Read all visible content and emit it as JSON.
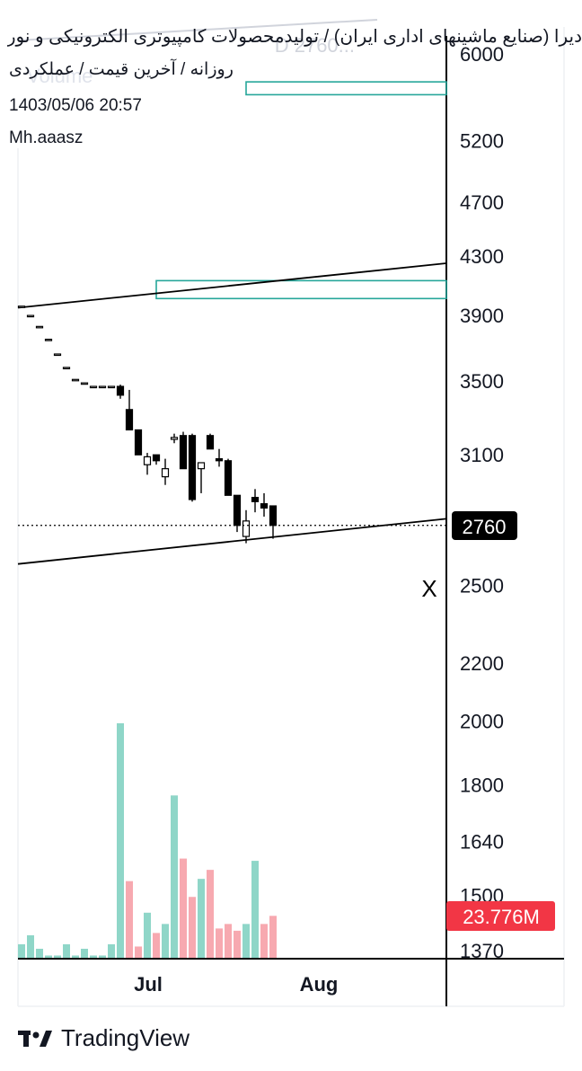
{
  "header": {
    "title": "دیرا (صنایع ماشینهای اداری ایران) / تولیدمحصولات کامپیوتری الکترونیکی و نوری",
    "subtitle": "روزانه / آخرین قیمت / عملکردی",
    "timestamp": "1403/05/06 20:57",
    "author": "Mh.aaasz",
    "watermark_symbol": "D  2760...",
    "watermark_volume": "Volume"
  },
  "chart_data": {
    "type": "candlestick",
    "y_scale": "log",
    "ylim": [
      1370,
      6000
    ],
    "y_ticks": [
      6000,
      5200,
      4700,
      4300,
      3900,
      3500,
      3100,
      2760,
      2500,
      2200,
      2000,
      1800,
      1640,
      1500,
      1370
    ],
    "x_ticks": [
      "Jul",
      "Aug"
    ],
    "last_price": 2760,
    "last_price_label": "2760",
    "volume_label": "23.776M",
    "marker_label": "X",
    "candles": [
      {
        "o": 3960,
        "h": 3960,
        "l": 3960,
        "c": 3960
      },
      {
        "o": 3900,
        "h": 3900,
        "l": 3900,
        "c": 3900
      },
      {
        "o": 3830,
        "h": 3830,
        "l": 3830,
        "c": 3830
      },
      {
        "o": 3750,
        "h": 3750,
        "l": 3750,
        "c": 3750
      },
      {
        "o": 3660,
        "h": 3660,
        "l": 3660,
        "c": 3660
      },
      {
        "o": 3580,
        "h": 3580,
        "l": 3580,
        "c": 3580
      },
      {
        "o": 3510,
        "h": 3510,
        "l": 3510,
        "c": 3510
      },
      {
        "o": 3490,
        "h": 3490,
        "l": 3490,
        "c": 3490
      },
      {
        "o": 3470,
        "h": 3470,
        "l": 3470,
        "c": 3470
      },
      {
        "o": 3470,
        "h": 3470,
        "l": 3470,
        "c": 3470
      },
      {
        "o": 3470,
        "h": 3470,
        "l": 3470,
        "c": 3470
      },
      {
        "o": 3470,
        "h": 3480,
        "l": 3400,
        "c": 3420
      },
      {
        "o": 3340,
        "h": 3450,
        "l": 3230,
        "c": 3230
      },
      {
        "o": 3230,
        "h": 3230,
        "l": 3100,
        "c": 3100
      },
      {
        "o": 3050,
        "h": 3110,
        "l": 3000,
        "c": 3090
      },
      {
        "o": 3100,
        "h": 3100,
        "l": 3050,
        "c": 3070
      },
      {
        "o": 2990,
        "h": 3080,
        "l": 2950,
        "c": 3030
      },
      {
        "o": 3180,
        "h": 3210,
        "l": 3160,
        "c": 3190
      },
      {
        "o": 3200,
        "h": 3220,
        "l": 3030,
        "c": 3030
      },
      {
        "o": 3200,
        "h": 3210,
        "l": 2870,
        "c": 2880
      },
      {
        "o": 3030,
        "h": 3050,
        "l": 2910,
        "c": 3060
      },
      {
        "o": 3200,
        "h": 3210,
        "l": 3130,
        "c": 3130
      },
      {
        "o": 3080,
        "h": 3130,
        "l": 3040,
        "c": 3070
      },
      {
        "o": 3070,
        "h": 3080,
        "l": 2900,
        "c": 2900
      },
      {
        "o": 2900,
        "h": 2900,
        "l": 2730,
        "c": 2760
      },
      {
        "o": 2710,
        "h": 2830,
        "l": 2680,
        "c": 2780
      },
      {
        "o": 2890,
        "h": 2930,
        "l": 2820,
        "c": 2870
      },
      {
        "o": 2860,
        "h": 2910,
        "l": 2800,
        "c": 2840
      },
      {
        "o": 2850,
        "h": 2850,
        "l": 2700,
        "c": 2760
      }
    ],
    "volume_min": 0,
    "volume_max": 52,
    "volume": [
      {
        "v": 3,
        "up": true
      },
      {
        "v": 5,
        "up": true
      },
      {
        "v": 2,
        "up": true
      },
      {
        "v": 0.5,
        "up": true
      },
      {
        "v": 0.5,
        "up": true
      },
      {
        "v": 3,
        "up": true
      },
      {
        "v": 0.5,
        "up": true
      },
      {
        "v": 2,
        "up": true
      },
      {
        "v": 0.5,
        "up": true
      },
      {
        "v": 0.5,
        "up": true
      },
      {
        "v": 3,
        "up": true
      },
      {
        "v": 52,
        "up": true
      },
      {
        "v": 17,
        "up": false
      },
      {
        "v": 2.5,
        "up": false
      },
      {
        "v": 10,
        "up": true
      },
      {
        "v": 5.5,
        "up": false
      },
      {
        "v": 7.5,
        "up": true
      },
      {
        "v": 36,
        "up": true
      },
      {
        "v": 22,
        "up": false
      },
      {
        "v": 13.5,
        "up": false
      },
      {
        "v": 17.5,
        "up": true
      },
      {
        "v": 19.5,
        "up": false
      },
      {
        "v": 6.5,
        "up": false
      },
      {
        "v": 7.5,
        "up": false
      },
      {
        "v": 6,
        "up": false
      },
      {
        "v": 7.5,
        "up": true
      },
      {
        "v": 21.5,
        "up": true
      },
      {
        "v": 7.5,
        "up": false
      },
      {
        "v": 9.3,
        "up": false
      }
    ],
    "trendlines": [
      {
        "from": {
          "bar": 0,
          "price": 3950
        },
        "to": {
          "bar": 47,
          "price": 4250
        }
      },
      {
        "from": {
          "bar": 0,
          "price": 2590
        },
        "to": {
          "bar": 47,
          "price": 2790
        }
      }
    ],
    "zones": [
      {
        "from_bar": 15,
        "to_bar": 47,
        "top": 4130,
        "bottom": 4010
      },
      {
        "from_bar": 25,
        "to_bar": 47,
        "top": 5730,
        "bottom": 5610
      }
    ],
    "colors": {
      "up": "#ffffff",
      "down": "#000000",
      "vol_up": "#8fd6c8",
      "vol_down": "#f7a9b0",
      "zone": "#26a69a",
      "last_price_bg": "#000000",
      "volume_badge_bg": "#f23645"
    }
  },
  "footer": {
    "brand": "TradingView"
  }
}
